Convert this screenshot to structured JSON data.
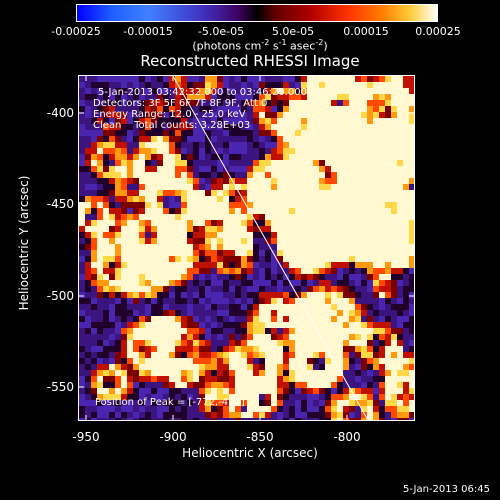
{
  "colorbar": {
    "tick_labels": [
      "-0.00025",
      "-0.00015",
      "-5.0e-05",
      "5.0e-05",
      "0.00015",
      "0.00025"
    ],
    "units_label_prefix": "(photons cm",
    "units_sup1": "-2",
    "units_mid1": " s",
    "units_sup2": "-1",
    "units_mid2": " asec",
    "units_sup3": "-2",
    "units_suffix": ")"
  },
  "plot": {
    "title": "Reconstructed RHESSI Image",
    "annotations": {
      "time_range": "5-Jan-2013 03:42:32.000 to 03:46:20.000",
      "detectors": "Detectors: 3F 5F 6F 7F 8F 9F, Att 0",
      "energy_range": "Energy Range: 12.0 - 25.0 keV",
      "method_counts": "Clean    Total counts: 3.28E+03",
      "peak_position": "Position of Peak = [-772,-422]"
    },
    "x_axis": {
      "title": "Heliocentric X (arcsec)",
      "tick_labels": [
        "-950",
        "-900",
        "-850",
        "-800"
      ],
      "range": [
        -950,
        -780
      ]
    },
    "y_axis": {
      "title": "Heliocentric Y (arcsec)",
      "tick_labels": [
        "-400",
        "-450",
        "-500",
        "-550"
      ],
      "range": [
        -385,
        -575
      ]
    }
  },
  "footer": {
    "date": "5-Jan-2013 06:45"
  }
}
